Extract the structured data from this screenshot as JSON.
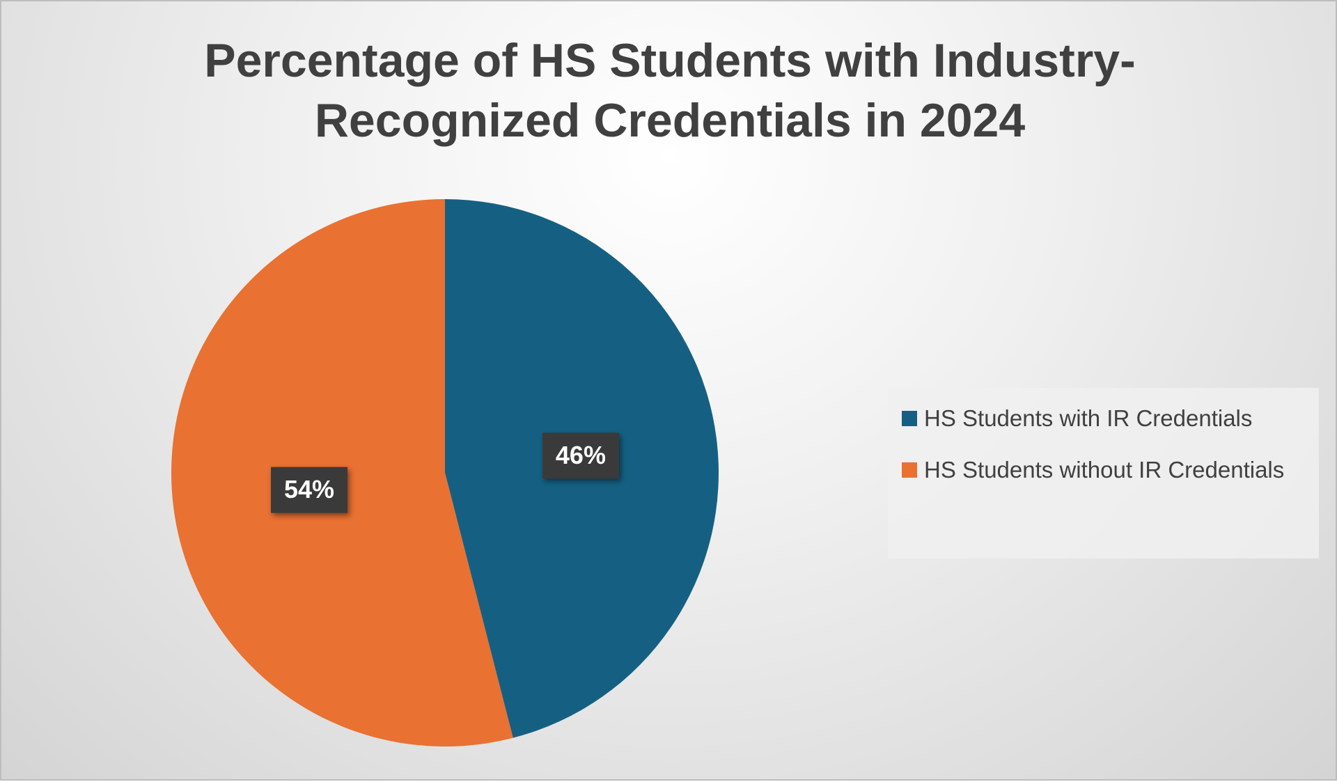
{
  "chart_data": {
    "type": "pie",
    "title": "Percentage of HS Students with Industry-Recognized Credentials in 2024",
    "categories": [
      "HS Students with IR Credentials",
      "HS Students without IR Credentials"
    ],
    "values": [
      46,
      54
    ],
    "value_labels": [
      "46%",
      "54%"
    ],
    "colors": [
      "#156082",
      "#e97132"
    ],
    "legend": "right"
  }
}
